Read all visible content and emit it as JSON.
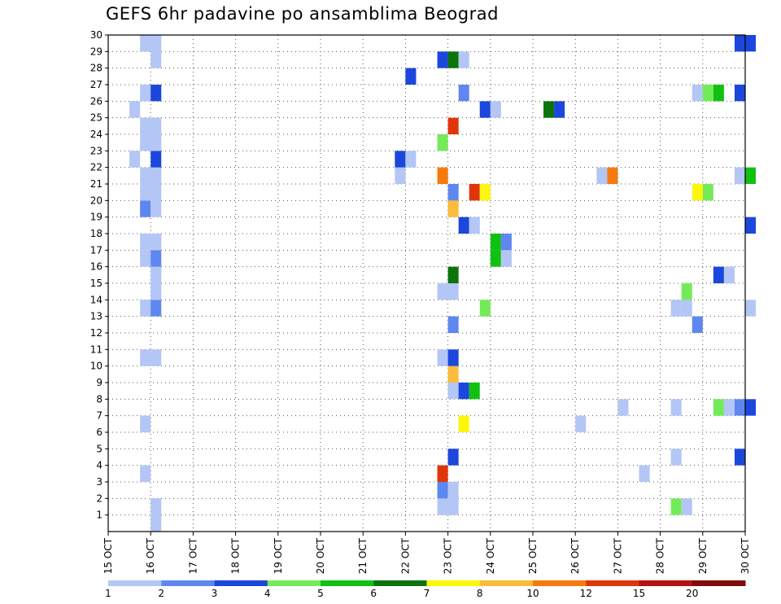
{
  "chart_data": {
    "type": "heatmap",
    "title": "GEFS 6hr padavine po ansamblima Beograd",
    "x_ticks": [
      "15 OCT",
      "16 OCT",
      "17 OCT",
      "18 OCT",
      "19 OCT",
      "20 OCT",
      "21 OCT",
      "22 OCT",
      "23 OCT",
      "24 OCT",
      "25 OCT",
      "26 OCT",
      "27 OCT",
      "28 OCT",
      "29 OCT",
      "30 OCT"
    ],
    "y_ticks": [
      "1",
      "2",
      "3",
      "4",
      "5",
      "6",
      "7",
      "8",
      "9",
      "10",
      "11",
      "12",
      "13",
      "14",
      "15",
      "16",
      "17",
      "18",
      "19",
      "20",
      "21",
      "22",
      "23",
      "24",
      "25",
      "26",
      "27",
      "28",
      "29",
      "30"
    ],
    "xlim": [
      "2015-10-15",
      "2015-10-30"
    ],
    "ylim": [
      0,
      30
    ],
    "x_step_hours": 6,
    "grid": true,
    "legend": {
      "position": "bottom",
      "labels": [
        "1",
        "2",
        "3",
        "4",
        "5",
        "6",
        "7",
        "8",
        "10",
        "12",
        "15",
        "20"
      ],
      "colors": [
        "#b3c6f5",
        "#5f87f0",
        "#1c47dc",
        "#73eb58",
        "#11c111",
        "#0b740b",
        "#fcf70a",
        "#fbbc3a",
        "#f67b0f",
        "#e0350b",
        "#b81010",
        "#800b0b"
      ]
    },
    "cells": [
      {
        "t": "2015-10-16 00:00",
        "m": 0,
        "v": 1.5
      },
      {
        "t": "2015-10-16 00:00",
        "m": 1,
        "v": 1.5
      },
      {
        "t": "2015-10-15 18:00",
        "m": 13,
        "v": 1.5
      },
      {
        "t": "2015-10-16 00:00",
        "m": 13,
        "v": 2.5
      },
      {
        "t": "2015-10-16 00:00",
        "m": 14,
        "v": 1.5
      },
      {
        "t": "2015-10-16 00:00",
        "m": 15,
        "v": 1.5
      },
      {
        "t": "2015-10-15 18:00",
        "m": 16,
        "v": 1.5
      },
      {
        "t": "2015-10-16 00:00",
        "m": 16,
        "v": 2.5
      },
      {
        "t": "2015-10-15 18:00",
        "m": 17,
        "v": 1.5
      },
      {
        "t": "2015-10-16 00:00",
        "m": 17,
        "v": 1.5
      },
      {
        "t": "2015-10-15 18:00",
        "m": 19,
        "v": 2.5
      },
      {
        "t": "2015-10-16 00:00",
        "m": 19,
        "v": 1.5
      },
      {
        "t": "2015-10-15 18:00",
        "m": 20,
        "v": 1.5
      },
      {
        "t": "2015-10-16 00:00",
        "m": 20,
        "v": 1.5
      },
      {
        "t": "2015-10-15 18:00",
        "m": 21,
        "v": 1.5
      },
      {
        "t": "2015-10-16 00:00",
        "m": 21,
        "v": 1.5
      },
      {
        "t": "2015-10-15 12:00",
        "m": 22,
        "v": 1.5
      },
      {
        "t": "2015-10-16 00:00",
        "m": 22,
        "v": 3.5
      },
      {
        "t": "2015-10-15 18:00",
        "m": 23,
        "v": 1.5
      },
      {
        "t": "2015-10-16 00:00",
        "m": 23,
        "v": 1.5
      },
      {
        "t": "2015-10-15 18:00",
        "m": 24,
        "v": 1.5
      },
      {
        "t": "2015-10-16 00:00",
        "m": 24,
        "v": 1.5
      },
      {
        "t": "2015-10-15 12:00",
        "m": 25,
        "v": 1.5
      },
      {
        "t": "2015-10-15 18:00",
        "m": 26,
        "v": 1.5
      },
      {
        "t": "2015-10-16 00:00",
        "m": 26,
        "v": 3.5
      },
      {
        "t": "2015-10-16 00:00",
        "m": 28,
        "v": 1.5
      },
      {
        "t": "2015-10-15 18:00",
        "m": 29,
        "v": 1.5
      },
      {
        "t": "2015-10-16 00:00",
        "m": 29,
        "v": 1.5
      },
      {
        "t": "2015-10-15 18:00",
        "m": 3,
        "v": 1.5
      },
      {
        "t": "2015-10-15 18:00",
        "m": 10,
        "v": 1.5
      },
      {
        "t": "2015-10-16 00:00",
        "m": 10,
        "v": 1.5
      },
      {
        "t": "2015-10-15 18:00",
        "m": 6,
        "v": 1.5
      },
      {
        "t": "2015-10-21 18:00",
        "m": 21,
        "v": 1.5
      },
      {
        "t": "2015-10-21 18:00",
        "m": 22,
        "v": 3.5
      },
      {
        "t": "2015-10-22 00:00",
        "m": 22,
        "v": 1.5
      },
      {
        "t": "2015-10-22 00:00",
        "m": 27,
        "v": 3.5
      },
      {
        "t": "2015-10-22 18:00",
        "m": 1,
        "v": 1.5
      },
      {
        "t": "2015-10-23 00:00",
        "m": 1,
        "v": 1.5
      },
      {
        "t": "2015-10-22 18:00",
        "m": 2,
        "v": 2.5
      },
      {
        "t": "2015-10-23 00:00",
        "m": 2,
        "v": 1.5
      },
      {
        "t": "2015-10-22 18:00",
        "m": 3,
        "v": 13.5
      },
      {
        "t": "2015-10-23 00:00",
        "m": 4,
        "v": 3.5
      },
      {
        "t": "2015-10-23 06:00",
        "m": 6,
        "v": 7.5
      },
      {
        "t": "2015-10-23 00:00",
        "m": 8,
        "v": 1.5
      },
      {
        "t": "2015-10-23 06:00",
        "m": 8,
        "v": 3.5
      },
      {
        "t": "2015-10-23 12:00",
        "m": 8,
        "v": 5.5
      },
      {
        "t": "2015-10-23 00:00",
        "m": 9,
        "v": 9.0
      },
      {
        "t": "2015-10-22 18:00",
        "m": 10,
        "v": 1.5
      },
      {
        "t": "2015-10-23 00:00",
        "m": 10,
        "v": 3.5
      },
      {
        "t": "2015-10-23 00:00",
        "m": 12,
        "v": 2.5
      },
      {
        "t": "2015-10-23 18:00",
        "m": 13,
        "v": 4.5
      },
      {
        "t": "2015-10-22 18:00",
        "m": 14,
        "v": 1.5
      },
      {
        "t": "2015-10-23 00:00",
        "m": 14,
        "v": 1.5
      },
      {
        "t": "2015-10-23 00:00",
        "m": 15,
        "v": 6.5
      },
      {
        "t": "2015-10-24 00:00",
        "m": 16,
        "v": 5.5
      },
      {
        "t": "2015-10-24 06:00",
        "m": 16,
        "v": 1.5
      },
      {
        "t": "2015-10-24 00:00",
        "m": 17,
        "v": 5.5
      },
      {
        "t": "2015-10-24 06:00",
        "m": 17,
        "v": 2.5
      },
      {
        "t": "2015-10-23 06:00",
        "m": 18,
        "v": 3.5
      },
      {
        "t": "2015-10-23 12:00",
        "m": 18,
        "v": 1.5
      },
      {
        "t": "2015-10-23 00:00",
        "m": 19,
        "v": 9.0
      },
      {
        "t": "2015-10-23 00:00",
        "m": 20,
        "v": 2.5
      },
      {
        "t": "2015-10-23 12:00",
        "m": 20,
        "v": 13.5
      },
      {
        "t": "2015-10-23 18:00",
        "m": 20,
        "v": 7.5
      },
      {
        "t": "2015-10-22 18:00",
        "m": 21,
        "v": 11.0
      },
      {
        "t": "2015-10-22 18:00",
        "m": 23,
        "v": 4.5
      },
      {
        "t": "2015-10-23 00:00",
        "m": 24,
        "v": 13.5
      },
      {
        "t": "2015-10-23 18:00",
        "m": 25,
        "v": 3.5
      },
      {
        "t": "2015-10-24 00:00",
        "m": 25,
        "v": 1.5
      },
      {
        "t": "2015-10-23 06:00",
        "m": 26,
        "v": 2.5
      },
      {
        "t": "2015-10-22 18:00",
        "m": 28,
        "v": 3.5
      },
      {
        "t": "2015-10-23 00:00",
        "m": 28,
        "v": 6.5
      },
      {
        "t": "2015-10-23 06:00",
        "m": 28,
        "v": 1.5
      },
      {
        "t": "2015-10-25 06:00",
        "m": 25,
        "v": 6.5
      },
      {
        "t": "2015-10-25 12:00",
        "m": 25,
        "v": 3.5
      },
      {
        "t": "2015-10-26 00:00",
        "m": 6,
        "v": 1.5
      },
      {
        "t": "2015-10-26 12:00",
        "m": 21,
        "v": 1.5
      },
      {
        "t": "2015-10-26 18:00",
        "m": 21,
        "v": 11.0
      },
      {
        "t": "2015-10-27 00:00",
        "m": 7,
        "v": 1.5
      },
      {
        "t": "2015-10-27 12:00",
        "m": 3,
        "v": 1.5
      },
      {
        "t": "2015-10-28 06:00",
        "m": 1,
        "v": 4.5
      },
      {
        "t": "2015-10-28 12:00",
        "m": 1,
        "v": 1.5
      },
      {
        "t": "2015-10-28 06:00",
        "m": 4,
        "v": 1.5
      },
      {
        "t": "2015-10-28 06:00",
        "m": 7,
        "v": 1.5
      },
      {
        "t": "2015-10-28 06:00",
        "m": 13,
        "v": 1.5
      },
      {
        "t": "2015-10-28 12:00",
        "m": 13,
        "v": 1.5
      },
      {
        "t": "2015-10-28 12:00",
        "m": 14,
        "v": 4.5
      },
      {
        "t": "2015-10-28 18:00",
        "m": 12,
        "v": 2.5
      },
      {
        "t": "2015-10-29 06:00",
        "m": 15,
        "v": 3.5
      },
      {
        "t": "2015-10-29 12:00",
        "m": 15,
        "v": 1.5
      },
      {
        "t": "2015-10-28 18:00",
        "m": 20,
        "v": 7.5
      },
      {
        "t": "2015-10-29 00:00",
        "m": 20,
        "v": 4.5
      },
      {
        "t": "2015-10-28 18:00",
        "m": 26,
        "v": 1.5
      },
      {
        "t": "2015-10-29 00:00",
        "m": 26,
        "v": 4.5
      },
      {
        "t": "2015-10-29 06:00",
        "m": 26,
        "v": 5.5
      },
      {
        "t": "2015-10-29 06:00",
        "m": 7,
        "v": 4.5
      },
      {
        "t": "2015-10-29 12:00",
        "m": 7,
        "v": 1.5
      },
      {
        "t": "2015-10-29 18:00",
        "m": 7,
        "v": 2.5
      },
      {
        "t": "2015-10-29 18:00",
        "m": 4,
        "v": 3.5
      },
      {
        "t": "2015-10-29 18:00",
        "m": 21,
        "v": 1.5
      },
      {
        "t": "2015-10-29 18:00",
        "m": 26,
        "v": 3.5
      },
      {
        "t": "2015-10-29 18:00",
        "m": 29,
        "v": 3.5
      },
      {
        "t": "2015-10-30 00:00",
        "m": 7,
        "v": 3.5
      },
      {
        "t": "2015-10-30 00:00",
        "m": 13,
        "v": 1.5
      },
      {
        "t": "2015-10-30 00:00",
        "m": 18,
        "v": 3.5
      },
      {
        "t": "2015-10-30 00:00",
        "m": 21,
        "v": 5.5
      },
      {
        "t": "2015-10-30 00:00",
        "m": 29,
        "v": 3.5
      }
    ]
  }
}
